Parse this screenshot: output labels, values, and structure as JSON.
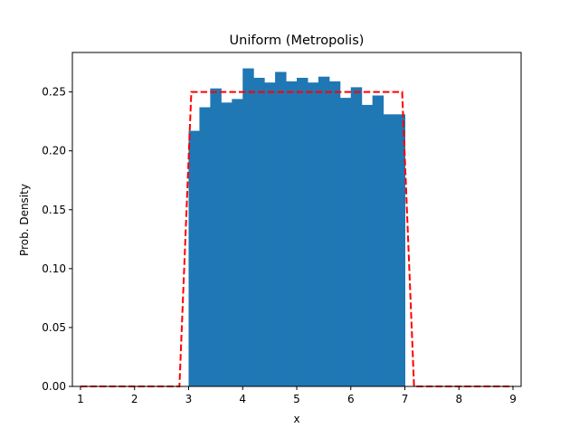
{
  "chart_data": {
    "type": "bar",
    "title": "Uniform (Metropolis)",
    "xlabel": "x",
    "ylabel": "Prob. Density",
    "xlim": [
      0.85,
      9.15
    ],
    "ylim": [
      0.0,
      0.2835
    ],
    "xticks": [
      1,
      2,
      3,
      4,
      5,
      6,
      7,
      8,
      9
    ],
    "xtick_labels": [
      "1",
      "2",
      "3",
      "4",
      "5",
      "6",
      "7",
      "8",
      "9"
    ],
    "yticks": [
      0.0,
      0.05,
      0.1,
      0.15,
      0.2,
      0.25
    ],
    "ytick_labels": [
      "0.00",
      "0.05",
      "0.10",
      "0.15",
      "0.20",
      "0.25"
    ],
    "grid": false,
    "histogram": {
      "bin_edges": [
        3.0,
        3.2,
        3.4,
        3.6,
        3.8,
        4.0,
        4.2,
        4.4,
        4.6,
        4.8,
        5.0,
        5.2,
        5.4,
        5.6,
        5.8,
        6.0,
        6.2,
        6.4,
        6.6,
        6.8,
        7.0
      ],
      "values": [
        0.217,
        0.237,
        0.253,
        0.241,
        0.244,
        0.27,
        0.262,
        0.258,
        0.267,
        0.259,
        0.262,
        0.258,
        0.263,
        0.259,
        0.245,
        0.254,
        0.239,
        0.247,
        0.231,
        0.231
      ],
      "color": "#1f77b4"
    },
    "reference_line": {
      "x": [
        1.0,
        2.83,
        3.05,
        6.95,
        7.17,
        9.0
      ],
      "y": [
        0.0,
        0.0,
        0.25,
        0.25,
        0.0,
        0.0
      ],
      "color": "#ff0000",
      "style": "dashed"
    }
  }
}
